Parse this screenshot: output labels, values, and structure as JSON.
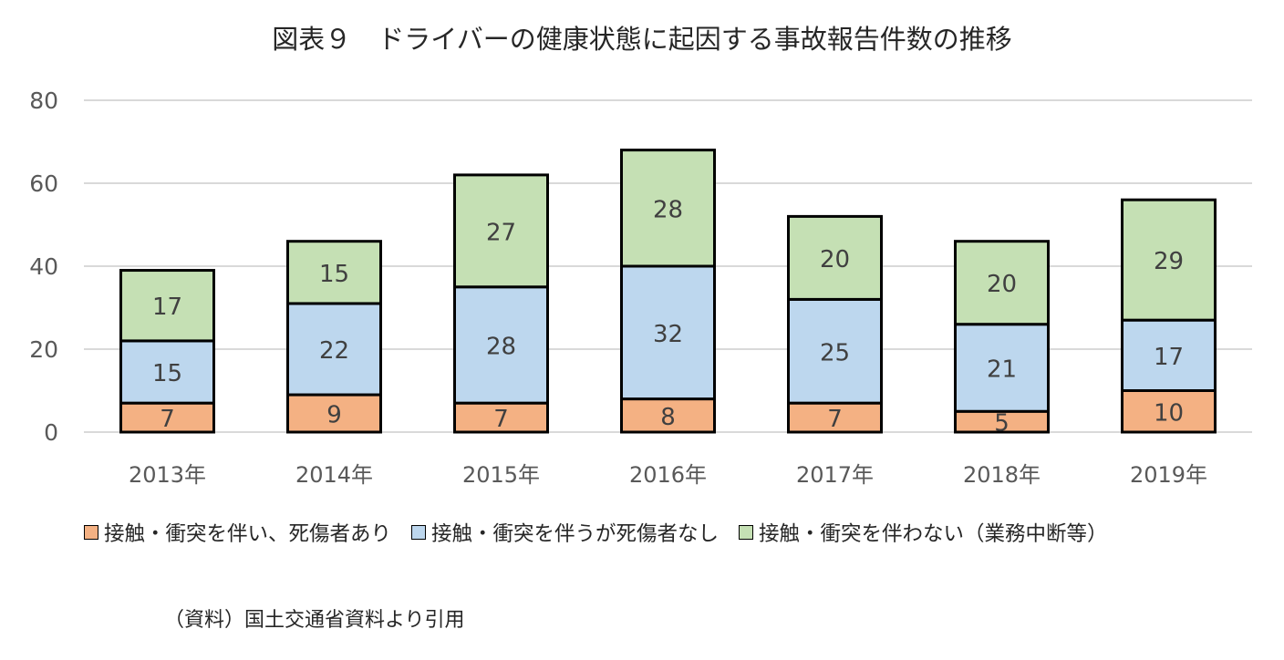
{
  "chart_data": {
    "type": "bar",
    "stacked": true,
    "title": "図表９　ドライバーの健康状態に起因する事故報告件数の推移",
    "categories": [
      "2013年",
      "2014年",
      "2015年",
      "2016年",
      "2017年",
      "2018年",
      "2019年"
    ],
    "series": [
      {
        "name": "接触・衝突を伴い、死傷者あり",
        "color": "#F4B183",
        "values": [
          7,
          9,
          7,
          8,
          7,
          5,
          10
        ]
      },
      {
        "name": "接触・衝突を伴うが死傷者なし",
        "color": "#BDD7EE",
        "values": [
          15,
          22,
          28,
          32,
          25,
          21,
          17
        ]
      },
      {
        "name": "接触・衝突を伴わない（業務中断等）",
        "color": "#C5E0B4",
        "values": [
          17,
          15,
          27,
          28,
          20,
          20,
          29
        ]
      }
    ],
    "ylim": [
      0,
      80
    ],
    "yticks": [
      0,
      20,
      40,
      60,
      80
    ],
    "xlabel": "",
    "ylabel": "",
    "grid": true,
    "legend_position": "bottom",
    "data_labels": true
  },
  "source_note": "（資料）国土交通省資料より引用"
}
